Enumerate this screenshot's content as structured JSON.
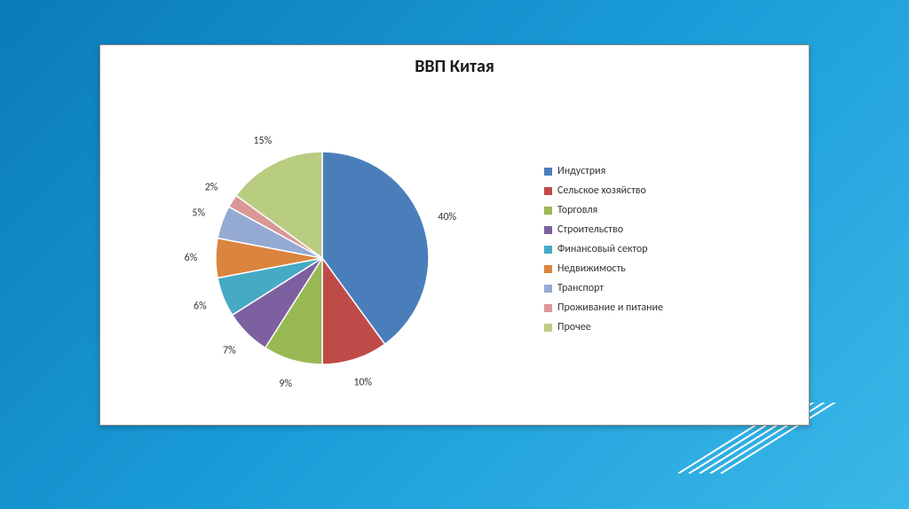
{
  "chart": {
    "type": "pie",
    "title": "ВВП Китая",
    "title_fontsize": 20,
    "title_fontweight": "bold",
    "title_color": "#1a1a1a",
    "background_color": "#ffffff",
    "card_border_color": "#888888",
    "pie_radius": 120,
    "pie_stroke": "#ffffff",
    "pie_stroke_width": 1.5,
    "start_angle_deg": 0,
    "label_fontsize": 12,
    "label_color": "#333333",
    "label_offset": 28,
    "legend_fontsize": 12,
    "legend_swatch_size": 9,
    "slices": [
      {
        "label": "Индустрия",
        "value": 40,
        "display": "40%",
        "color": "#4a7ebb"
      },
      {
        "label": "Сельское хозяйство",
        "value": 10,
        "display": "10%",
        "color": "#be4b48"
      },
      {
        "label": "Торговля",
        "value": 9,
        "display": "9%",
        "color": "#98b954"
      },
      {
        "label": "Строительство",
        "value": 7,
        "display": "7%",
        "color": "#7d60a0"
      },
      {
        "label": "Финансовый сектор",
        "value": 6,
        "display": "6%",
        "color": "#46aac5"
      },
      {
        "label": "Недвижимость",
        "value": 6,
        "display": "6%",
        "color": "#db843d"
      },
      {
        "label": "Транспорт",
        "value": 5,
        "display": "5%",
        "color": "#95aad3"
      },
      {
        "label": "Проживание и питание",
        "value": 2,
        "display": "2%",
        "color": "#d99795"
      },
      {
        "label": "Прочее",
        "value": 15,
        "display": "15%",
        "color": "#b9cd81"
      }
    ]
  },
  "slide": {
    "bg_gradient_from": "#0a7bb8",
    "bg_gradient_to": "#3bb8e8",
    "decor_stroke": "#ffffff",
    "decor_stroke_width": 2
  }
}
